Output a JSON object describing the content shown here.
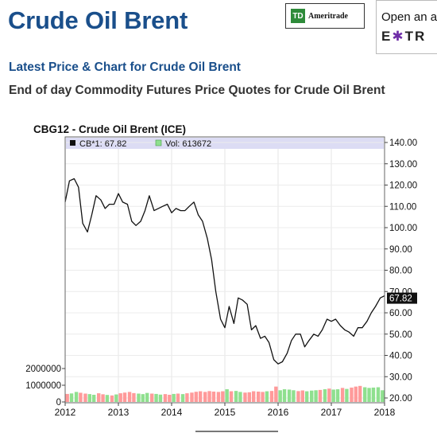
{
  "header": {
    "title": "Crude Oil Brent",
    "ad_td": {
      "logo": "TD",
      "text": "Ameritrade"
    },
    "ad_etrade": {
      "line1": "Open an a",
      "line2_pre": "E",
      "line2_star": "✱",
      "line2_post": "TR"
    },
    "subtitle": "Latest Price & Chart for Crude Oil Brent",
    "description": "End of day Commodity Futures Price Quotes for Crude Oil Brent"
  },
  "chart_data": {
    "type": "line",
    "title": "CBG12 - Crude Oil Brent (ICE)",
    "legend": [
      {
        "label": "CB*1: 67.82",
        "color": "#111111"
      },
      {
        "label": "Vol: 613672",
        "color": "#8fe08f"
      }
    ],
    "last_value_label": "67.82",
    "x_range": [
      2012.0,
      2018.0
    ],
    "x_ticks": [
      "2012",
      "2013",
      "2014",
      "2015",
      "2016",
      "2017",
      "2018"
    ],
    "price_axis": {
      "range": [
        20,
        140
      ],
      "ticks": [
        "140.00",
        "130.00",
        "120.00",
        "110.00",
        "100.00",
        "90.00",
        "80.00",
        "70.00",
        "60.00",
        "50.00",
        "40.00",
        "30.00",
        "20.00"
      ]
    },
    "volume_axis": {
      "range": [
        0,
        2000000
      ],
      "ticks": [
        "2000000",
        "1000000",
        "0"
      ]
    },
    "price_series": {
      "name": "CB*1",
      "color": "#111111",
      "points": [
        [
          2012.0,
          112
        ],
        [
          2012.08,
          122
        ],
        [
          2012.17,
          123
        ],
        [
          2012.25,
          119
        ],
        [
          2012.33,
          102
        ],
        [
          2012.42,
          98
        ],
        [
          2012.5,
          106
        ],
        [
          2012.58,
          115
        ],
        [
          2012.67,
          113
        ],
        [
          2012.75,
          109
        ],
        [
          2012.83,
          111
        ],
        [
          2012.92,
          111
        ],
        [
          2013.0,
          116
        ],
        [
          2013.08,
          112
        ],
        [
          2013.17,
          111
        ],
        [
          2013.25,
          103
        ],
        [
          2013.33,
          101
        ],
        [
          2013.42,
          103
        ],
        [
          2013.5,
          108
        ],
        [
          2013.58,
          115
        ],
        [
          2013.67,
          108
        ],
        [
          2013.75,
          109
        ],
        [
          2013.83,
          110
        ],
        [
          2013.92,
          111
        ],
        [
          2014.0,
          107
        ],
        [
          2014.08,
          109
        ],
        [
          2014.17,
          108
        ],
        [
          2014.25,
          108
        ],
        [
          2014.33,
          110
        ],
        [
          2014.42,
          112
        ],
        [
          2014.5,
          106
        ],
        [
          2014.58,
          103
        ],
        [
          2014.67,
          95
        ],
        [
          2014.75,
          85
        ],
        [
          2014.83,
          70
        ],
        [
          2014.92,
          57
        ],
        [
          2015.0,
          53
        ],
        [
          2015.08,
          63
        ],
        [
          2015.17,
          55
        ],
        [
          2015.25,
          67
        ],
        [
          2015.33,
          66
        ],
        [
          2015.42,
          64
        ],
        [
          2015.5,
          52
        ],
        [
          2015.58,
          54
        ],
        [
          2015.67,
          48
        ],
        [
          2015.75,
          49
        ],
        [
          2015.83,
          46
        ],
        [
          2015.92,
          38
        ],
        [
          2016.0,
          36
        ],
        [
          2016.08,
          37
        ],
        [
          2016.17,
          41
        ],
        [
          2016.25,
          47
        ],
        [
          2016.33,
          50
        ],
        [
          2016.42,
          50
        ],
        [
          2016.5,
          44
        ],
        [
          2016.58,
          47
        ],
        [
          2016.67,
          50
        ],
        [
          2016.75,
          49
        ],
        [
          2016.83,
          52
        ],
        [
          2016.92,
          57
        ],
        [
          2017.0,
          56
        ],
        [
          2017.08,
          57
        ],
        [
          2017.17,
          54
        ],
        [
          2017.25,
          52
        ],
        [
          2017.33,
          51
        ],
        [
          2017.42,
          49
        ],
        [
          2017.5,
          53
        ],
        [
          2017.58,
          53
        ],
        [
          2017.67,
          56
        ],
        [
          2017.75,
          60
        ],
        [
          2017.83,
          63
        ],
        [
          2017.92,
          67
        ],
        [
          2018.0,
          68
        ]
      ]
    },
    "volume_series": {
      "name": "Vol",
      "bars": [
        [
          2012.04,
          480000,
          "#ff9a9a"
        ],
        [
          2012.12,
          510000,
          "#8fe08f"
        ],
        [
          2012.21,
          600000,
          "#8fe08f"
        ],
        [
          2012.29,
          550000,
          "#ff9a9a"
        ],
        [
          2012.38,
          500000,
          "#ff9a9a"
        ],
        [
          2012.46,
          470000,
          "#8fe08f"
        ],
        [
          2012.54,
          430000,
          "#8fe08f"
        ],
        [
          2012.63,
          520000,
          "#ff9a9a"
        ],
        [
          2012.71,
          460000,
          "#ff9a9a"
        ],
        [
          2012.79,
          420000,
          "#8fe08f"
        ],
        [
          2012.88,
          390000,
          "#ff9a9a"
        ],
        [
          2012.96,
          450000,
          "#8fe08f"
        ],
        [
          2013.04,
          520000,
          "#ff9a9a"
        ],
        [
          2013.12,
          560000,
          "#ff9a9a"
        ],
        [
          2013.21,
          600000,
          "#ff9a9a"
        ],
        [
          2013.29,
          530000,
          "#ff9a9a"
        ],
        [
          2013.38,
          500000,
          "#8fe08f"
        ],
        [
          2013.46,
          470000,
          "#8fe08f"
        ],
        [
          2013.54,
          540000,
          "#8fe08f"
        ],
        [
          2013.63,
          500000,
          "#ff9a9a"
        ],
        [
          2013.71,
          480000,
          "#8fe08f"
        ],
        [
          2013.79,
          440000,
          "#8fe08f"
        ],
        [
          2013.88,
          470000,
          "#ff9a9a"
        ],
        [
          2013.96,
          430000,
          "#ff9a9a"
        ],
        [
          2014.04,
          480000,
          "#8fe08f"
        ],
        [
          2014.12,
          500000,
          "#ff9a9a"
        ],
        [
          2014.21,
          470000,
          "#8fe08f"
        ],
        [
          2014.29,
          520000,
          "#ff9a9a"
        ],
        [
          2014.38,
          560000,
          "#ff9a9a"
        ],
        [
          2014.46,
          610000,
          "#ff9a9a"
        ],
        [
          2014.54,
          640000,
          "#ff9a9a"
        ],
        [
          2014.63,
          600000,
          "#ff9a9a"
        ],
        [
          2014.71,
          650000,
          "#ff9a9a"
        ],
        [
          2014.79,
          620000,
          "#ff9a9a"
        ],
        [
          2014.88,
          600000,
          "#ff9a9a"
        ],
        [
          2014.96,
          640000,
          "#ff9a9a"
        ],
        [
          2015.04,
          760000,
          "#8fe08f"
        ],
        [
          2015.12,
          640000,
          "#ff9a9a"
        ],
        [
          2015.21,
          660000,
          "#8fe08f"
        ],
        [
          2015.29,
          600000,
          "#8fe08f"
        ],
        [
          2015.38,
          560000,
          "#ff9a9a"
        ],
        [
          2015.46,
          580000,
          "#ff9a9a"
        ],
        [
          2015.54,
          640000,
          "#ff9a9a"
        ],
        [
          2015.63,
          620000,
          "#ff9a9a"
        ],
        [
          2015.71,
          600000,
          "#ff9a9a"
        ],
        [
          2015.79,
          640000,
          "#8fe08f"
        ],
        [
          2015.88,
          660000,
          "#ff9a9a"
        ],
        [
          2015.96,
          920000,
          "#ff9a9a"
        ],
        [
          2016.04,
          700000,
          "#8fe08f"
        ],
        [
          2016.12,
          760000,
          "#8fe08f"
        ],
        [
          2016.21,
          740000,
          "#8fe08f"
        ],
        [
          2016.29,
          700000,
          "#8fe08f"
        ],
        [
          2016.38,
          650000,
          "#ff9a9a"
        ],
        [
          2016.46,
          690000,
          "#ff9a9a"
        ],
        [
          2016.54,
          640000,
          "#8fe08f"
        ],
        [
          2016.63,
          680000,
          "#8fe08f"
        ],
        [
          2016.71,
          700000,
          "#8fe08f"
        ],
        [
          2016.79,
          720000,
          "#ff9a9a"
        ],
        [
          2016.88,
          760000,
          "#8fe08f"
        ],
        [
          2016.96,
          800000,
          "#ff9a9a"
        ],
        [
          2017.04,
          740000,
          "#8fe08f"
        ],
        [
          2017.12,
          760000,
          "#8fe08f"
        ],
        [
          2017.21,
          840000,
          "#ff9a9a"
        ],
        [
          2017.29,
          780000,
          "#8fe08f"
        ],
        [
          2017.38,
          860000,
          "#ff9a9a"
        ],
        [
          2017.46,
          920000,
          "#ff9a9a"
        ],
        [
          2017.54,
          960000,
          "#ff9a9a"
        ],
        [
          2017.63,
          880000,
          "#8fe08f"
        ],
        [
          2017.71,
          840000,
          "#8fe08f"
        ],
        [
          2017.79,
          860000,
          "#8fe08f"
        ],
        [
          2017.88,
          880000,
          "#8fe08f"
        ],
        [
          2017.96,
          700000,
          "#8fe08f"
        ]
      ]
    },
    "grid": true
  }
}
